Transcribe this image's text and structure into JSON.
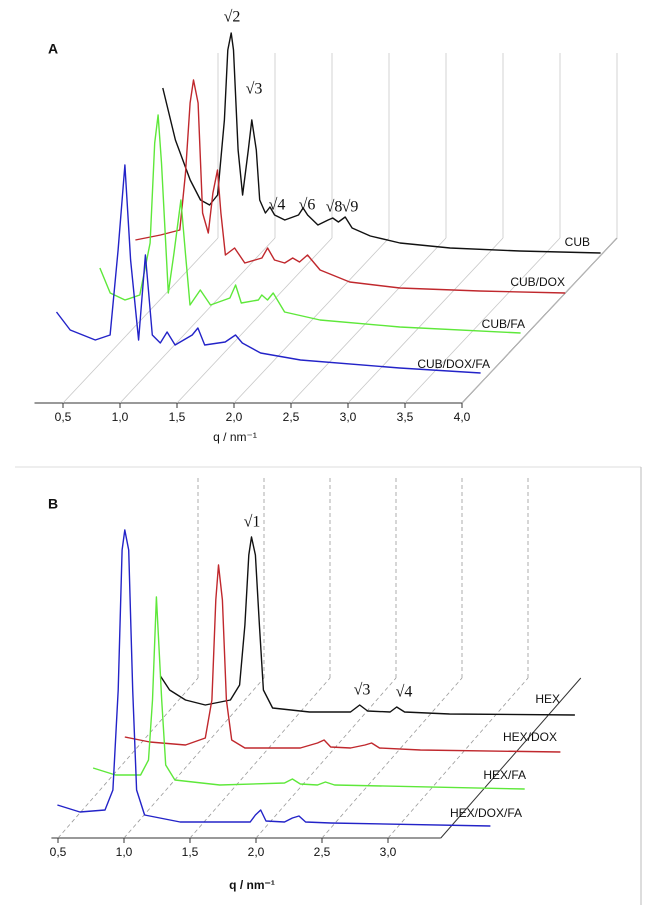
{
  "chart_data": [
    {
      "type": "waterfall",
      "panel": "A",
      "xlabel": "q / nm⁻¹",
      "xlim": [
        0.25,
        4.0
      ],
      "ylim": [
        0,
        240
      ],
      "xticks": [
        {
          "value": 0.5,
          "label": "0,5"
        },
        {
          "value": 1.0,
          "label": "1,0"
        },
        {
          "value": 1.5,
          "label": "1,5"
        },
        {
          "value": 2.0,
          "label": "2,0"
        },
        {
          "value": 2.5,
          "label": "2,5"
        },
        {
          "value": 3.0,
          "label": "3,0"
        },
        {
          "value": 3.5,
          "label": "3,5"
        },
        {
          "value": 4.0,
          "label": "4,0"
        }
      ],
      "grid": "solid",
      "annotations": [
        "√2",
        "√3",
        "√4",
        "√6",
        "√8",
        "√9"
      ],
      "series": [
        {
          "name": "CUB",
          "color": "#111111",
          "x": [
            0.06,
            0.17,
            0.3,
            0.39,
            0.47,
            0.54,
            0.6,
            0.63,
            0.66,
            0.68,
            0.72,
            0.76,
            0.81,
            0.84,
            0.88,
            0.91,
            0.96,
            1.0,
            1.04,
            1.13,
            1.25,
            1.29,
            1.33,
            1.42,
            1.51,
            1.55,
            1.6,
            1.66,
            1.72,
            1.88,
            2.14,
            2.58,
            3.19,
            3.9
          ],
          "values": [
            165,
            113,
            73,
            53,
            48,
            58,
            133,
            203,
            220,
            203,
            103,
            58,
            103,
            133,
            103,
            53,
            40,
            46,
            38,
            33,
            38,
            45,
            38,
            28,
            33,
            35,
            31,
            36,
            25,
            17,
            10,
            5,
            2,
            0
          ]
        },
        {
          "name": "CUB/DOX",
          "color": "#c0282d",
          "x": [
            0.17,
            0.39,
            0.56,
            0.61,
            0.65,
            0.68,
            0.72,
            0.76,
            0.81,
            0.85,
            0.89,
            0.92,
            0.96,
            1.04,
            1.13,
            1.28,
            1.33,
            1.39,
            1.48,
            1.55,
            1.61,
            1.68,
            1.79,
            2.05,
            2.49,
            3.19,
            3.94
          ],
          "values": [
            53,
            58,
            63,
            120,
            190,
            213,
            190,
            80,
            60,
            100,
            123,
            80,
            38,
            45,
            30,
            35,
            45,
            33,
            30,
            35,
            31,
            38,
            23,
            11,
            5,
            2,
            0
          ]
        },
        {
          "name": "CUB/FA",
          "color": "#5ee83a",
          "x": [
            0.21,
            0.3,
            0.43,
            0.56,
            0.65,
            0.69,
            0.72,
            0.75,
            0.81,
            0.86,
            0.92,
            0.96,
            1.0,
            1.09,
            1.18,
            1.35,
            1.4,
            1.45,
            1.6,
            1.63,
            1.68,
            1.73,
            1.83,
            2.14,
            2.84,
            3.9
          ],
          "values": [
            65,
            40,
            33,
            38,
            90,
            190,
            218,
            170,
            40,
            80,
            133,
            80,
            28,
            43,
            28,
            35,
            48,
            30,
            33,
            38,
            33,
            40,
            21,
            13,
            6,
            0
          ]
        },
        {
          "name": "CUB/DOX/FA",
          "color": "#2323c8",
          "x": [
            0.18,
            0.3,
            0.52,
            0.65,
            0.72,
            0.78,
            0.83,
            0.9,
            0.96,
            1.02,
            1.09,
            1.15,
            1.22,
            1.37,
            1.42,
            1.48,
            1.66,
            1.75,
            1.81,
            1.97,
            2.32,
            3.19,
            3.9
          ],
          "values": [
            61,
            43,
            33,
            38,
            123,
            208,
            113,
            33,
            118,
            38,
            30,
            41,
            28,
            38,
            45,
            28,
            31,
            38,
            30,
            20,
            13,
            5,
            0
          ]
        }
      ]
    },
    {
      "type": "waterfall",
      "panel": "B",
      "xlabel": "q / nm⁻¹",
      "xlim": [
        0.45,
        3.4
      ],
      "ylim": [
        0,
        300
      ],
      "xticks": [
        {
          "value": 0.5,
          "label": "0,5"
        },
        {
          "value": 1.0,
          "label": "1,0"
        },
        {
          "value": 1.5,
          "label": "1,5"
        },
        {
          "value": 2.0,
          "label": "2,0"
        },
        {
          "value": 2.5,
          "label": "2,5"
        },
        {
          "value": 3.0,
          "label": "3,0"
        }
      ],
      "grid": "dashed",
      "annotations": [
        "√1",
        "√3",
        "√4"
      ],
      "series": [
        {
          "name": "HEX",
          "color": "#111111",
          "x": [
            0.45,
            0.52,
            0.64,
            0.79,
            0.98,
            1.05,
            1.09,
            1.12,
            1.14,
            1.17,
            1.2,
            1.23,
            1.3,
            1.58,
            1.89,
            1.96,
            2.02,
            2.19,
            2.24,
            2.3,
            2.64,
            3.59
          ],
          "values": [
            39,
            25,
            15,
            10,
            15,
            30,
            90,
            160,
            178,
            160,
            90,
            25,
            7,
            3,
            3,
            10,
            4,
            3,
            8,
            3,
            1,
            0
          ]
        },
        {
          "name": "HEX/DOX",
          "color": "#c0282d",
          "x": [
            0.43,
            0.62,
            0.89,
            1.04,
            1.09,
            1.12,
            1.14,
            1.17,
            1.2,
            1.24,
            1.34,
            1.76,
            1.89,
            1.94,
            1.99,
            2.14,
            2.25,
            2.3,
            2.36,
            2.67,
            3.73
          ],
          "values": [
            15,
            10,
            7,
            14,
            52,
            152,
            187,
            152,
            52,
            12,
            4,
            4,
            9,
            12,
            5,
            4,
            7,
            9,
            4,
            2,
            0
          ]
        },
        {
          "name": "HEX/FA",
          "color": "#5ee83a",
          "x": [
            0.44,
            0.61,
            0.8,
            0.86,
            0.89,
            0.92,
            0.96,
            0.99,
            1.06,
            1.4,
            1.89,
            1.95,
            2.01,
            2.14,
            2.2,
            2.27,
            3.71
          ],
          "values": [
            21,
            14,
            14,
            29,
            89,
            192,
            89,
            24,
            9,
            4,
            6,
            10,
            5,
            4,
            7,
            4,
            0
          ]
        },
        {
          "name": "HEX/DOX/FA",
          "color": "#2323c8",
          "x": [
            0.42,
            0.59,
            0.78,
            0.84,
            0.88,
            0.91,
            0.93,
            0.96,
            0.99,
            1.02,
            1.08,
            1.35,
            1.88,
            1.92,
            1.96,
            2.0,
            2.14,
            2.2,
            2.25,
            2.3,
            2.49,
            3.7
          ],
          "values": [
            21,
            14,
            16,
            36,
            136,
            276,
            296,
            276,
            136,
            36,
            11,
            4,
            4,
            11,
            16,
            5,
            4,
            8,
            10,
            4,
            3,
            0
          ]
        }
      ]
    }
  ]
}
